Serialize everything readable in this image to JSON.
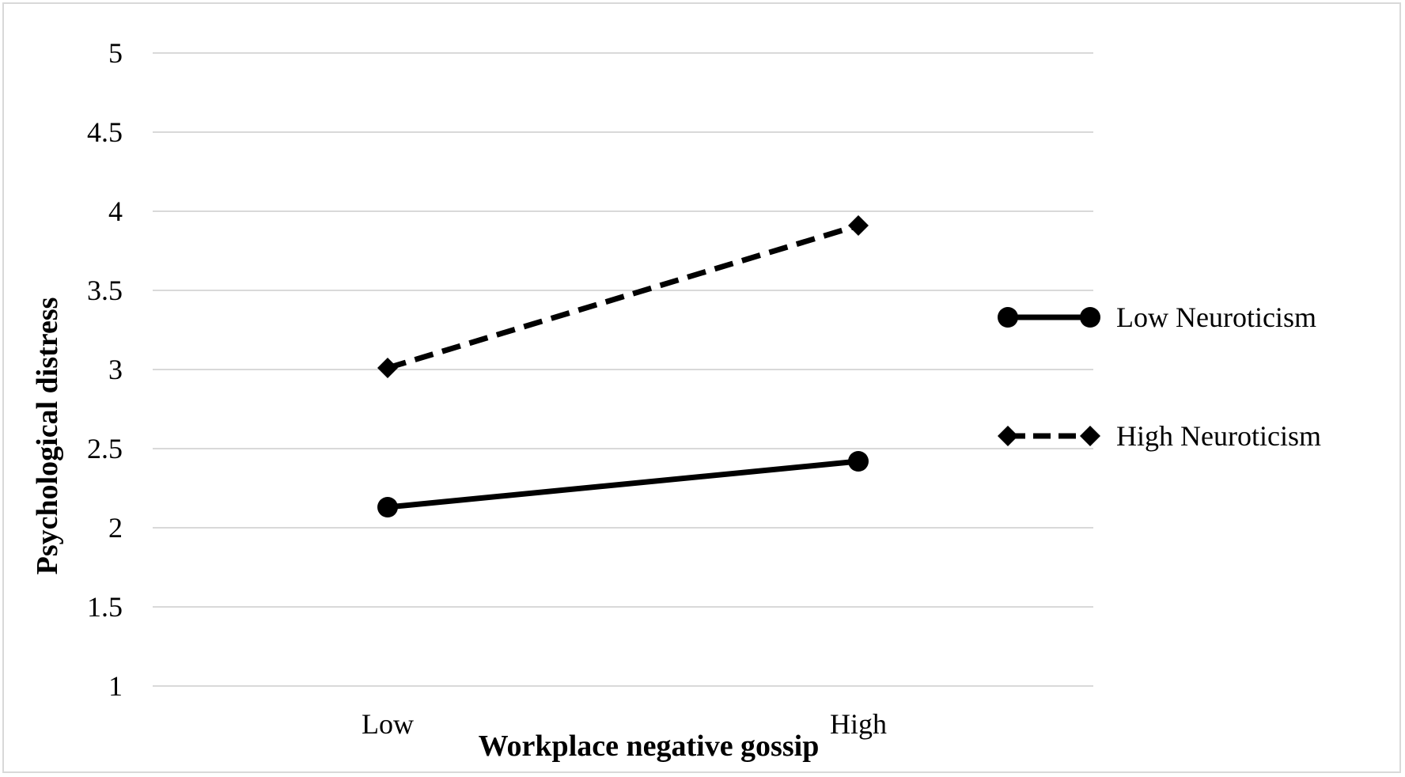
{
  "chart_data": {
    "type": "line",
    "title": "",
    "xlabel": "Workplace negative gossip",
    "ylabel": "Psychological distress",
    "categories": [
      "Low",
      "High"
    ],
    "ylim": [
      1,
      5
    ],
    "yticks": [
      "1",
      "1.5",
      "2",
      "2.5",
      "3",
      "3.5",
      "4",
      "4.5",
      "5"
    ],
    "grid": "horizontal",
    "legend_position": "right",
    "series": [
      {
        "name": "Low Neuroticism",
        "values": [
          2.13,
          2.42
        ],
        "line_style": "solid",
        "marker": "circle",
        "color": "#000000"
      },
      {
        "name": "High Neuroticism",
        "values": [
          3.01,
          3.91
        ],
        "line_style": "dashed",
        "marker": "diamond",
        "color": "#000000"
      }
    ],
    "colors": {
      "grid": "#d9d9d9",
      "frame": "#d9d9d9",
      "text": "#000000"
    }
  }
}
